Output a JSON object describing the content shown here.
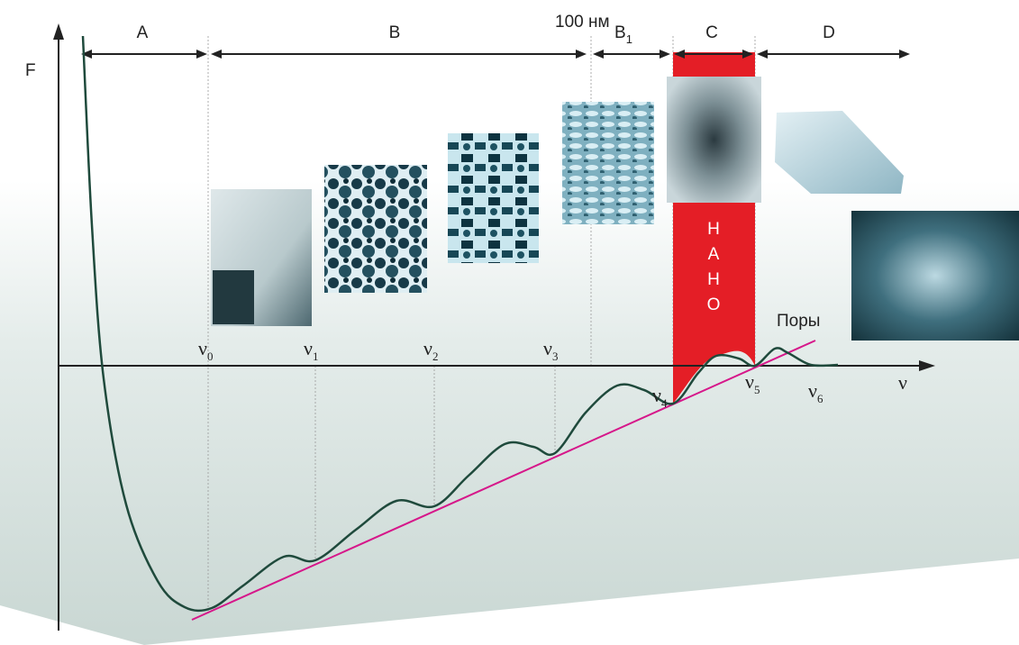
{
  "axes": {
    "y_label": "F",
    "x_label": "ν"
  },
  "regions": [
    {
      "label": "A"
    },
    {
      "label": "B"
    },
    {
      "label": "B",
      "sub": "1"
    },
    {
      "label": "C"
    },
    {
      "label": "D"
    }
  ],
  "scale_label": "100 нм",
  "nano_letters": [
    "Н",
    "А",
    "Н",
    "О"
  ],
  "pores_label": "Поры",
  "nu_labels": [
    {
      "symbol": "ν",
      "sub": "0"
    },
    {
      "symbol": "ν",
      "sub": "1"
    },
    {
      "symbol": "ν",
      "sub": "2"
    },
    {
      "symbol": "ν",
      "sub": "3"
    },
    {
      "symbol": "ν",
      "sub": "4"
    },
    {
      "symbol": "ν",
      "sub": "5"
    },
    {
      "symbol": "ν",
      "sub": "6"
    }
  ]
}
